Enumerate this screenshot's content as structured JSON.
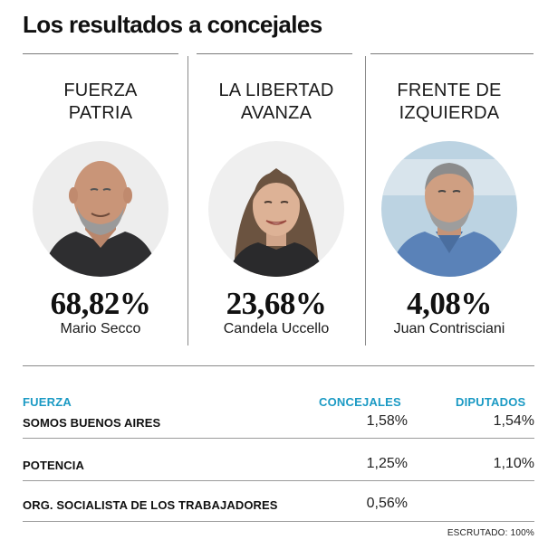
{
  "header": {
    "title": "Los resultados a concejales"
  },
  "candidates": [
    {
      "party_line1": "FUERZA",
      "party_line2": "PATRIA",
      "percentage": "68,82%",
      "name": "Mario Secco"
    },
    {
      "party_line1": "LA LIBERTAD",
      "party_line2": "AVANZA",
      "percentage": "23,68%",
      "name": "Candela Uccello"
    },
    {
      "party_line1": "FRENTE DE",
      "party_line2": "IZQUIERDA",
      "percentage": "4,08%",
      "name": "Juan Contrisciani"
    }
  ],
  "table": {
    "headers": {
      "fuerza": "FUERZA",
      "concejales": "CONCEJALES",
      "diputados": "DIPUTADOS"
    },
    "rows": [
      {
        "fuerza": "SOMOS BUENOS AIRES",
        "concejales": "1,58%",
        "diputados": "1,54%"
      },
      {
        "fuerza": "POTENCIA",
        "concejales": "1,25%",
        "diputados": "1,10%"
      },
      {
        "fuerza": "ORG. SOCIALISTA DE LOS TRABAJADORES",
        "concejales": "0,56%",
        "diputados": ""
      }
    ]
  },
  "footer": {
    "escrutado": "ESCRUTADO: 100%"
  },
  "colors": {
    "accent": "#1b9ac4",
    "text": "#111111",
    "rule": "#8a8a8a"
  }
}
